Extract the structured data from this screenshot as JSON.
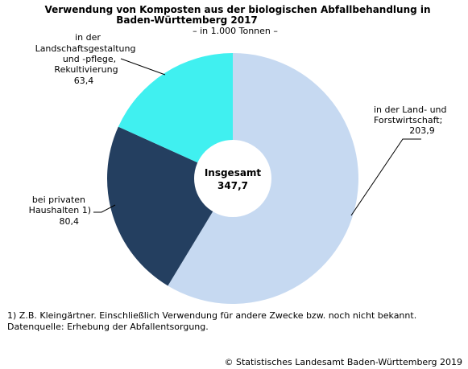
{
  "chart_data": {
    "type": "pie",
    "title_lines": [
      "Verwendung von Komposten aus der biologischen Abfallbehandlung in",
      "Baden-Württemberg 2017"
    ],
    "subtitle": "– in 1.000 Tonnen –",
    "center_label": "Insgesamt",
    "center_value": "347,7",
    "total": 347.7,
    "slices": [
      {
        "label_lines": [
          "in der Land- und",
          "Forstwirtschaft;"
        ],
        "value_text": "203,9",
        "value": 203.9,
        "color": "#c6d9f1"
      },
      {
        "label_lines": [
          "bei privaten",
          "Haushalten 1)"
        ],
        "value_text": "80,4",
        "value": 80.4,
        "color": "#243f60"
      },
      {
        "label_lines": [
          "in der",
          "Landschaftsgestaltung",
          "und -pflege,",
          "Rekultivierung"
        ],
        "value_text": "63,4",
        "value": 63.4,
        "color": "#40f0f0"
      }
    ]
  },
  "footnotes": [
    "1) Z.B. Kleingärtner. Einschließlich Verwendung für andere Zwecke bzw. noch nicht bekannt.",
    "Datenquelle: Erhebung der Abfallentsorgung."
  ],
  "copyright": "© Statistisches Landesamt Baden-Württemberg 2019"
}
